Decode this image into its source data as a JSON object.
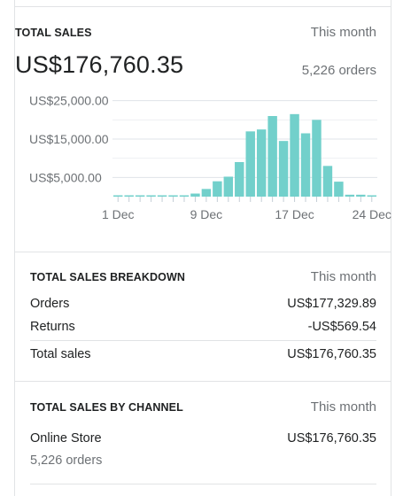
{
  "total_sales": {
    "heading": "TOTAL SALES",
    "period": "This month",
    "amount": "US$176,760.35",
    "orders": "5,226 orders"
  },
  "chart_data": {
    "type": "bar",
    "categories": [
      "1 Dec",
      "2 Dec",
      "3 Dec",
      "4 Dec",
      "5 Dec",
      "6 Dec",
      "7 Dec",
      "8 Dec",
      "9 Dec",
      "10 Dec",
      "11 Dec",
      "12 Dec",
      "13 Dec",
      "14 Dec",
      "15 Dec",
      "16 Dec",
      "17 Dec",
      "18 Dec",
      "19 Dec",
      "20 Dec",
      "21 Dec",
      "22 Dec",
      "23 Dec",
      "24 Dec"
    ],
    "values": [
      300,
      300,
      300,
      300,
      300,
      300,
      300,
      800,
      2000,
      4000,
      5200,
      9000,
      17000,
      17500,
      21000,
      14500,
      21500,
      16500,
      20000,
      8000,
      3900,
      500,
      500,
      300
    ],
    "ylim": [
      0,
      30000
    ],
    "yticks": [
      5000,
      15000,
      25000
    ],
    "ytick_labels": [
      "US$5,000.00",
      "US$15,000.00",
      "US$25,000.00"
    ],
    "xtick_labels": [
      {
        "index": 0,
        "label": "1 Dec"
      },
      {
        "index": 8,
        "label": "9 Dec"
      },
      {
        "index": 16,
        "label": "17 Dec"
      },
      {
        "index": 23,
        "label": "24 Dec"
      }
    ],
    "color": "#72d0cb",
    "grid": true
  },
  "breakdown": {
    "heading": "TOTAL SALES BREAKDOWN",
    "period": "This month",
    "rows": [
      {
        "label": "Orders",
        "value": "US$177,329.89"
      },
      {
        "label": "Returns",
        "value": "-US$569.54"
      },
      {
        "label": "Total sales",
        "value": "US$176,760.35"
      }
    ]
  },
  "by_channel": {
    "heading": "TOTAL SALES BY CHANNEL",
    "period": "This month",
    "channel": "Online Store",
    "amount": "US$176,760.35",
    "orders": "5,226 orders"
  }
}
